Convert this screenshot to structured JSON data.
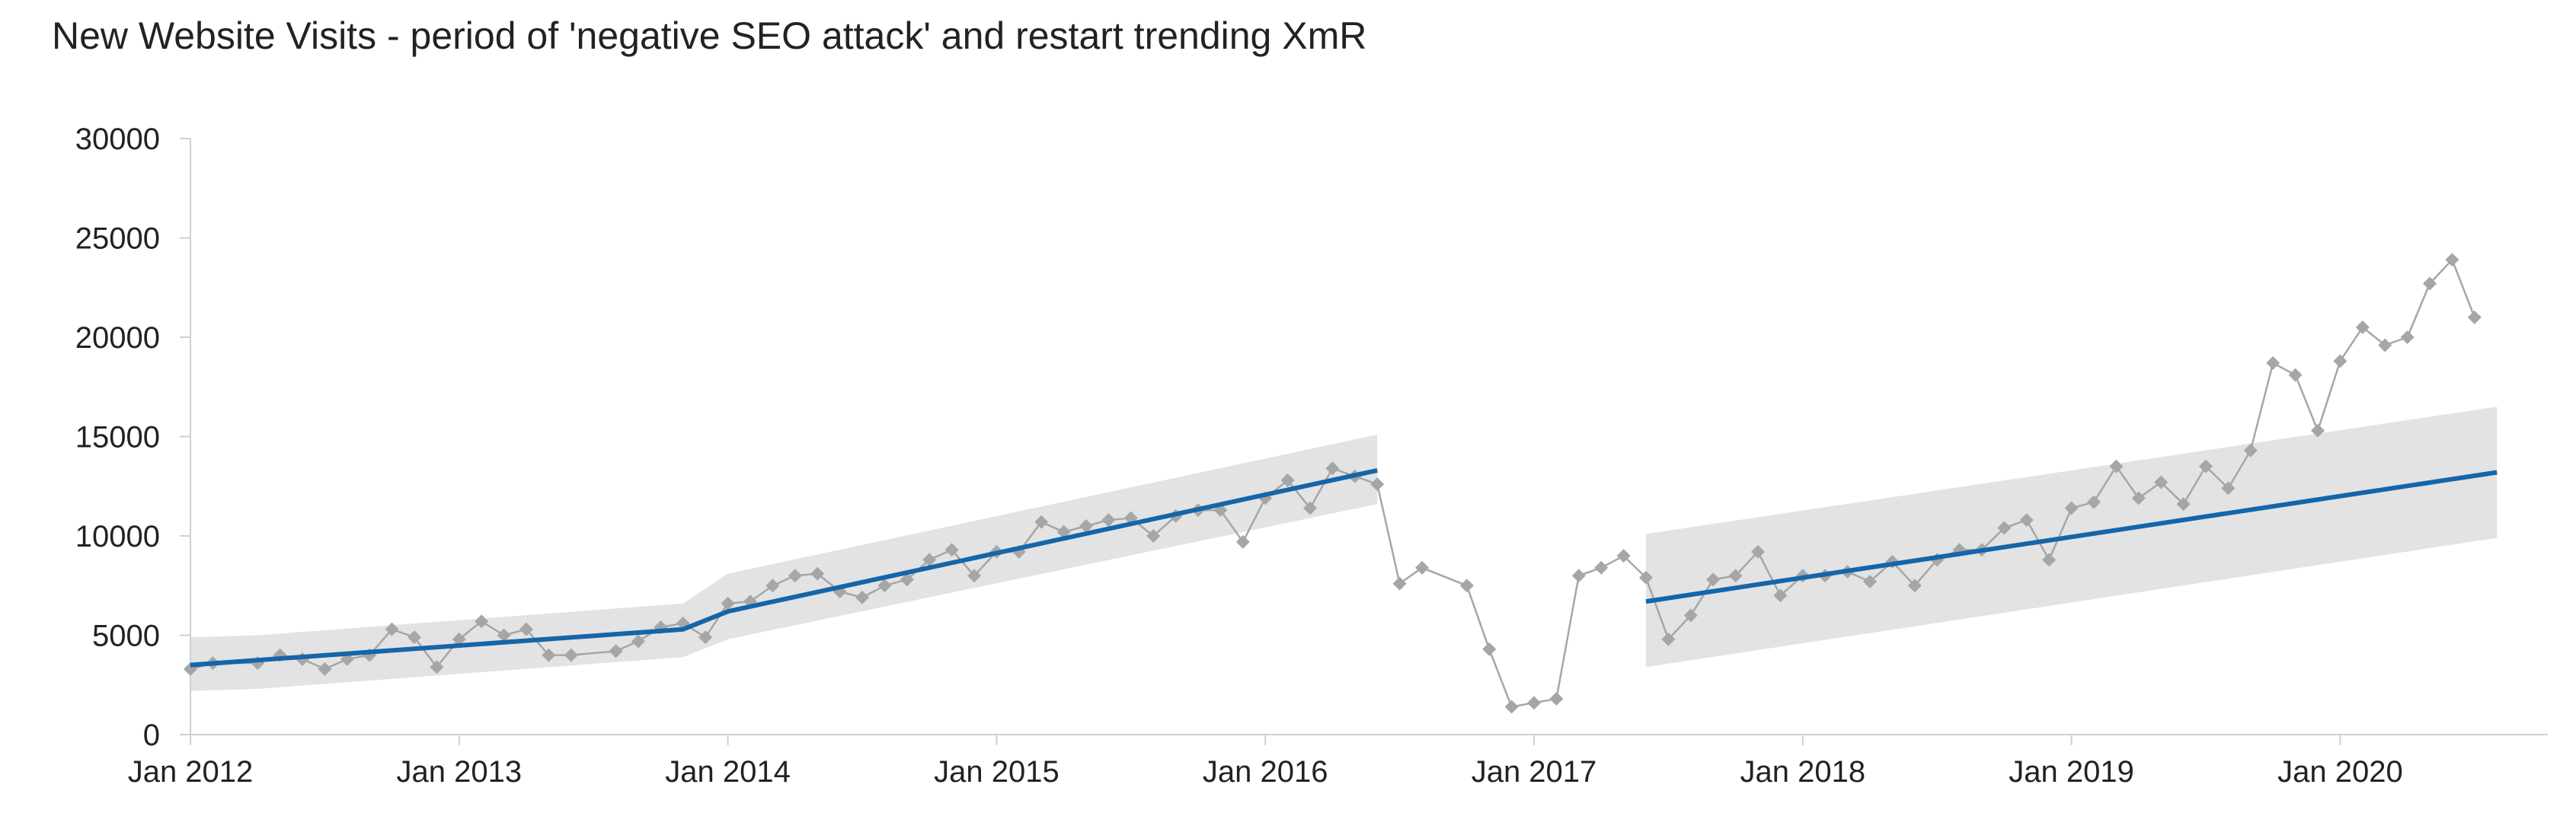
{
  "chart_data": {
    "type": "line",
    "title": "New Website Visits - period of 'negative SEO attack' and restart trending XmR",
    "xlabel": "",
    "ylabel": "",
    "ylim": [
      0,
      30000
    ],
    "yticks": [
      0,
      5000,
      10000,
      15000,
      20000,
      25000,
      30000
    ],
    "xticks": [
      {
        "date": "2012-01",
        "label": "Jan 2012"
      },
      {
        "date": "2013-01",
        "label": "Jan 2013"
      },
      {
        "date": "2014-01",
        "label": "Jan 2014"
      },
      {
        "date": "2015-01",
        "label": "Jan 2015"
      },
      {
        "date": "2016-01",
        "label": "Jan 2016"
      },
      {
        "date": "2017-01",
        "label": "Jan 2017"
      },
      {
        "date": "2018-01",
        "label": "Jan 2018"
      },
      {
        "date": "2019-01",
        "label": "Jan 2019"
      },
      {
        "date": "2020-01",
        "label": "Jan 2020"
      }
    ],
    "grid": false,
    "legend": "none",
    "colors": {
      "visits": "#a6a6a6",
      "trend": "#1565a8",
      "band": "#e3e3e3",
      "axis": "#d0d0d0",
      "text": "#222222"
    },
    "series": [
      {
        "role": "visits",
        "points": [
          [
            "2012-01",
            3300
          ],
          [
            "2012-02",
            3600
          ],
          [
            "2012-04",
            3600
          ],
          [
            "2012-05",
            4000
          ],
          [
            "2012-06",
            3800
          ],
          [
            "2012-07",
            3300
          ],
          [
            "2012-08",
            3800
          ],
          [
            "2012-09",
            4000
          ],
          [
            "2012-10",
            5300
          ],
          [
            "2012-11",
            4900
          ],
          [
            "2012-12",
            3400
          ],
          [
            "2013-01",
            4800
          ],
          [
            "2013-02",
            5700
          ],
          [
            "2013-03",
            5000
          ],
          [
            "2013-04",
            5300
          ],
          [
            "2013-05",
            4000
          ],
          [
            "2013-06",
            4000
          ],
          [
            "2013-08",
            4200
          ],
          [
            "2013-09",
            4700
          ],
          [
            "2013-10",
            5400
          ],
          [
            "2013-11",
            5600
          ],
          [
            "2013-12",
            4900
          ],
          [
            "2014-01",
            6600
          ],
          [
            "2014-02",
            6700
          ],
          [
            "2014-03",
            7500
          ],
          [
            "2014-04",
            8000
          ],
          [
            "2014-05",
            8100
          ],
          [
            "2014-06",
            7200
          ],
          [
            "2014-07",
            6900
          ],
          [
            "2014-08",
            7500
          ],
          [
            "2014-09",
            7800
          ],
          [
            "2014-10",
            8800
          ],
          [
            "2014-11",
            9300
          ],
          [
            "2014-12",
            8000
          ],
          [
            "2015-01",
            9200
          ],
          [
            "2015-02",
            9200
          ],
          [
            "2015-03",
            10700
          ],
          [
            "2015-04",
            10200
          ],
          [
            "2015-05",
            10500
          ],
          [
            "2015-06",
            10800
          ],
          [
            "2015-07",
            10900
          ],
          [
            "2015-08",
            10000
          ],
          [
            "2015-09",
            11000
          ],
          [
            "2015-10",
            11300
          ],
          [
            "2015-11",
            11300
          ],
          [
            "2015-12",
            9700
          ],
          [
            "2016-01",
            11900
          ],
          [
            "2016-02",
            12800
          ],
          [
            "2016-03",
            11400
          ],
          [
            "2016-04",
            13400
          ],
          [
            "2016-05",
            13000
          ],
          [
            "2016-06",
            12600
          ],
          [
            "2016-07",
            7600
          ],
          [
            "2016-08",
            8400
          ],
          [
            "2016-10",
            7500
          ],
          [
            "2016-11",
            4300
          ],
          [
            "2016-12",
            1400
          ],
          [
            "2017-01",
            1600
          ],
          [
            "2017-02",
            1800
          ],
          [
            "2017-03",
            8000
          ],
          [
            "2017-04",
            8400
          ],
          [
            "2017-05",
            9000
          ],
          [
            "2017-06",
            7900
          ],
          [
            "2017-07",
            4800
          ],
          [
            "2017-08",
            6000
          ],
          [
            "2017-09",
            7800
          ],
          [
            "2017-10",
            8000
          ],
          [
            "2017-11",
            9200
          ],
          [
            "2017-12",
            7000
          ],
          [
            "2018-01",
            8000
          ],
          [
            "2018-02",
            8000
          ],
          [
            "2018-03",
            8200
          ],
          [
            "2018-04",
            7700
          ],
          [
            "2018-05",
            8700
          ],
          [
            "2018-06",
            7500
          ],
          [
            "2018-07",
            8800
          ],
          [
            "2018-08",
            9300
          ],
          [
            "2018-09",
            9300
          ],
          [
            "2018-10",
            10400
          ],
          [
            "2018-11",
            10800
          ],
          [
            "2018-12",
            8800
          ],
          [
            "2019-01",
            11400
          ],
          [
            "2019-02",
            11700
          ],
          [
            "2019-03",
            13500
          ],
          [
            "2019-04",
            11900
          ],
          [
            "2019-05",
            12700
          ],
          [
            "2019-06",
            11600
          ],
          [
            "2019-07",
            13500
          ],
          [
            "2019-08",
            12400
          ],
          [
            "2019-09",
            14300
          ],
          [
            "2019-10",
            18700
          ],
          [
            "2019-11",
            18100
          ],
          [
            "2019-12",
            15300
          ],
          [
            "2020-01",
            18800
          ],
          [
            "2020-02",
            20500
          ],
          [
            "2020-03",
            19600
          ],
          [
            "2020-04",
            20000
          ],
          [
            "2020-05",
            22700
          ],
          [
            "2020-06",
            23900
          ],
          [
            "2020-07",
            21000
          ]
        ]
      },
      {
        "role": "trend-1",
        "points": [
          [
            "2012-01",
            3500
          ],
          [
            "2013-11",
            5300
          ],
          [
            "2014-01",
            6200
          ],
          [
            "2016-06",
            13300
          ]
        ]
      },
      {
        "role": "trend-2",
        "points": [
          [
            "2017-06",
            6700
          ],
          [
            "2020-08",
            13200
          ]
        ]
      }
    ],
    "bands": [
      {
        "role": "limits-1",
        "upper": [
          [
            "2012-01",
            4900
          ],
          [
            "2012-04",
            5000
          ],
          [
            "2013-11",
            6600
          ],
          [
            "2014-01",
            8100
          ],
          [
            "2016-06",
            15100
          ]
        ],
        "lower": [
          [
            "2012-01",
            2200
          ],
          [
            "2012-04",
            2300
          ],
          [
            "2013-11",
            3900
          ],
          [
            "2014-01",
            4800
          ],
          [
            "2016-06",
            11600
          ]
        ]
      },
      {
        "role": "limits-2",
        "upper": [
          [
            "2017-06",
            10100
          ],
          [
            "2020-08",
            16500
          ]
        ],
        "lower": [
          [
            "2017-06",
            3400
          ],
          [
            "2020-08",
            9900
          ]
        ]
      }
    ]
  }
}
